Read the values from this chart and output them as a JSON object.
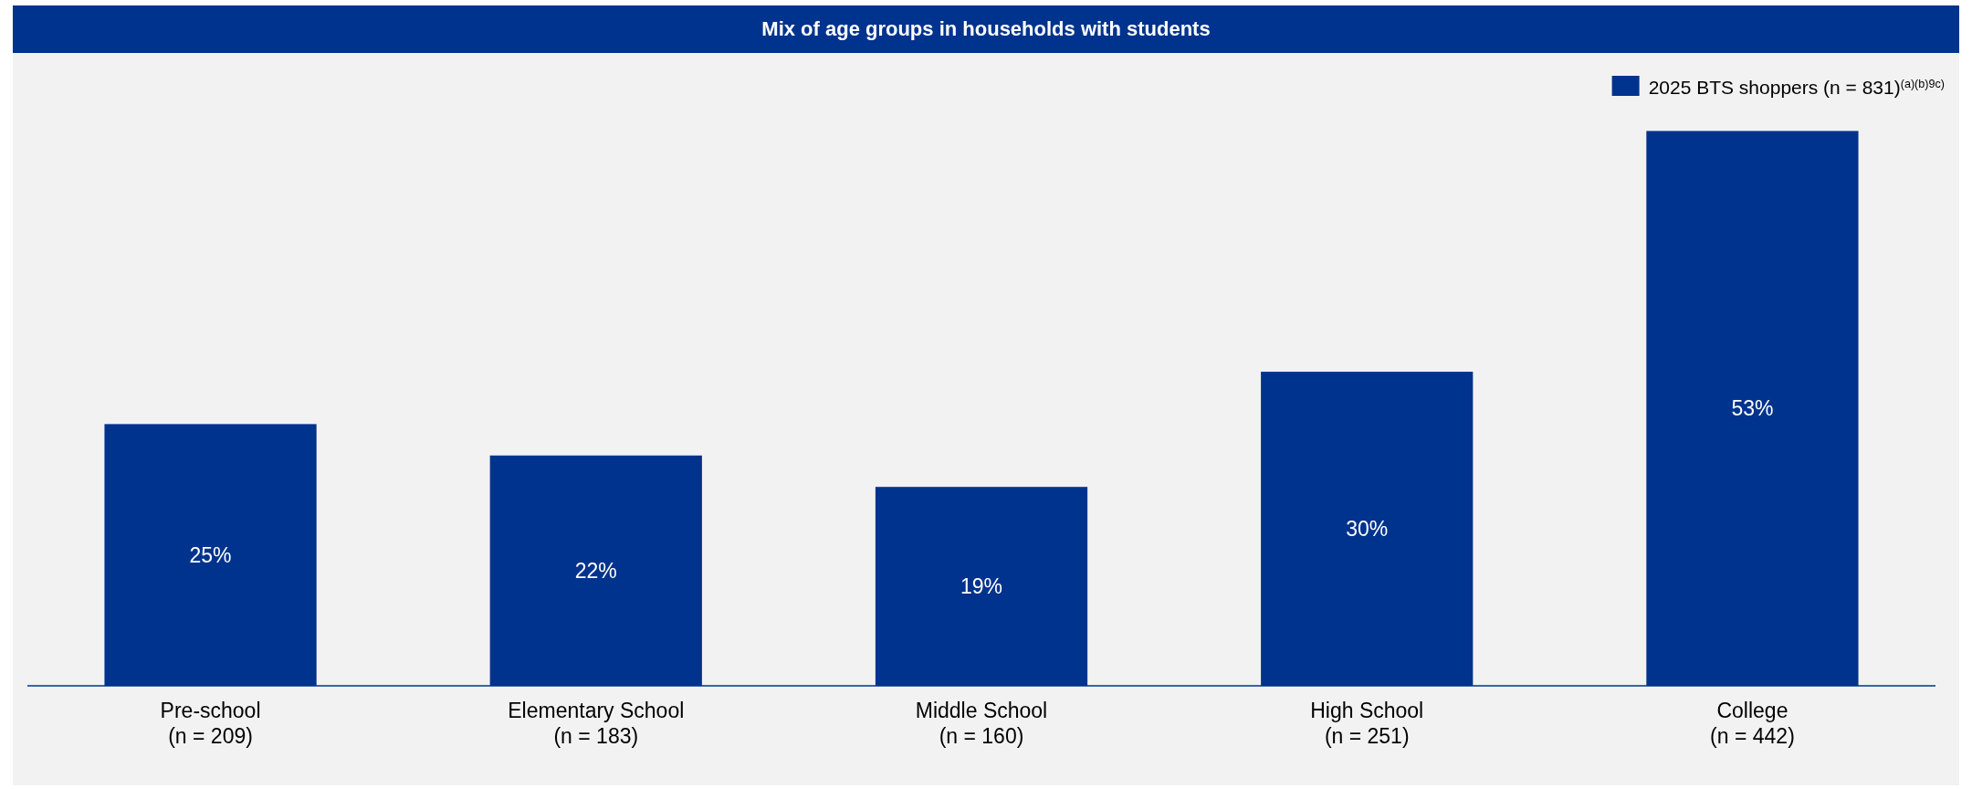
{
  "chart_data": {
    "type": "bar",
    "title": "Mix of age groups in households with students",
    "categories": [
      "Pre-school\n(n = 209)",
      "Elementary School\n(n = 183)",
      "Middle School\n(n = 160)",
      "High School\n(n = 251)",
      "College\n(n = 442)"
    ],
    "series": [
      {
        "name": "2025 BTS shoppers (n = 831)$^{(a)(b)9c)}$",
        "color": "#00338d",
        "values": [
          25,
          22,
          19,
          30,
          53
        ],
        "value_labels": [
          "25%",
          "22%",
          "19%",
          "30%",
          "53%"
        ]
      }
    ],
    "legend": "top right",
    "tick_labels": "x"
  }
}
